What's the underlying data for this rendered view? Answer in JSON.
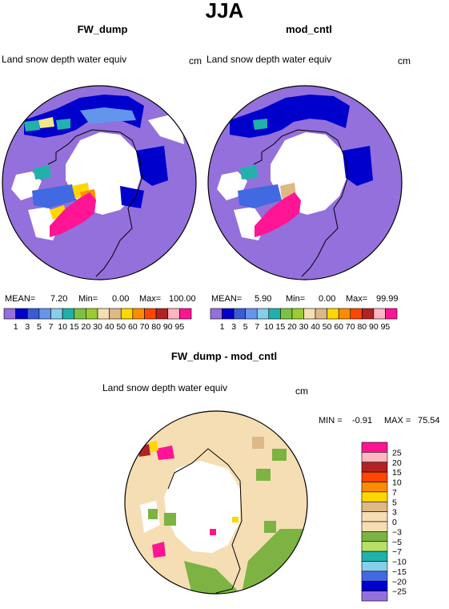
{
  "figure": {
    "title": "JJA"
  },
  "panels": [
    {
      "id": "fw_dump",
      "title": "FW_dump",
      "field_label": "Land snow depth water equiv",
      "units": "cm",
      "stats": {
        "mean_label": "MEAN=",
        "mean": "7.20",
        "min_label": "Min=",
        "min": "0.00",
        "max_label": "Max=",
        "max": "100.00"
      }
    },
    {
      "id": "mod_cntl",
      "title": "mod_cntl",
      "field_label": "Land snow depth water equiv",
      "units": "cm",
      "stats": {
        "mean_label": "MEAN=",
        "mean": "5.90",
        "min_label": "Min=",
        "min": "0.00",
        "max_label": "Max=",
        "max": "99.99"
      }
    },
    {
      "id": "diff",
      "title": "FW_dump - mod_cntl",
      "field_label": "Land snow depth water equiv",
      "units": "cm",
      "stats": {
        "min_label": "MIN =",
        "min": "-0.91",
        "max_label": "MAX =",
        "max": "75.54"
      }
    }
  ],
  "chart_data": [
    {
      "type": "heatmap",
      "projection": "polar stereographic (circular)",
      "title": "FW_dump",
      "variable": "Land snow depth water equiv",
      "units": "cm",
      "mean": 7.2,
      "min": 0.0,
      "max": 100.0,
      "colorbar": {
        "orientation": "horizontal",
        "levels": [
          1,
          3,
          5,
          7,
          10,
          15,
          20,
          30,
          40,
          50,
          60,
          70,
          80,
          90,
          95
        ],
        "tick_labels": [
          "1",
          "3",
          "5",
          "7",
          "10",
          "15",
          "20",
          "30",
          "40",
          "50",
          "60",
          "70",
          "80",
          "90",
          "95"
        ],
        "colors": [
          "#9370db",
          "#0000cd",
          "#3b5bd6",
          "#6495ed",
          "#87ceeb",
          "#20b2aa",
          "#7cc242",
          "#9acd32",
          "#f5deb3",
          "#deb887",
          "#ffd700",
          "#ff8c00",
          "#ff4500",
          "#b22222",
          "#ffb6c1",
          "#ff1493"
        ]
      }
    },
    {
      "type": "heatmap",
      "projection": "polar stereographic (circular)",
      "title": "mod_cntl",
      "variable": "Land snow depth water equiv",
      "units": "cm",
      "mean": 5.9,
      "min": 0.0,
      "max": 99.99,
      "colorbar": {
        "orientation": "horizontal",
        "levels": [
          1,
          3,
          5,
          7,
          10,
          15,
          20,
          30,
          40,
          50,
          60,
          70,
          80,
          90,
          95
        ],
        "tick_labels": [
          "1",
          "3",
          "5",
          "7",
          "10",
          "15",
          "20",
          "30",
          "40",
          "50",
          "60",
          "70",
          "80",
          "90",
          "95"
        ],
        "colors": [
          "#9370db",
          "#0000cd",
          "#3b5bd6",
          "#6495ed",
          "#87ceeb",
          "#20b2aa",
          "#7cc242",
          "#9acd32",
          "#f5deb3",
          "#deb887",
          "#ffd700",
          "#ff8c00",
          "#ff4500",
          "#b22222",
          "#ffb6c1",
          "#ff1493"
        ]
      }
    },
    {
      "type": "heatmap",
      "projection": "polar stereographic (circular)",
      "title": "FW_dump - mod_cntl",
      "variable": "Land snow depth water equiv",
      "units": "cm",
      "min": -0.91,
      "max": 75.54,
      "colorbar": {
        "orientation": "vertical",
        "levels": [
          25,
          20,
          15,
          10,
          7,
          5,
          3,
          0,
          -3,
          -5,
          -7,
          -10,
          -15,
          -20,
          -25
        ],
        "tick_labels": [
          "25",
          "20",
          "15",
          "10",
          "7",
          "5",
          "3",
          "0",
          "−3",
          "−5",
          "−7",
          "−10",
          "−15",
          "−20",
          "−25"
        ],
        "colors": [
          "#ff1493",
          "#ffb6c1",
          "#b22222",
          "#ff4500",
          "#ff8c00",
          "#ffd700",
          "#deb887",
          "#f5deb3",
          "#f5deb3",
          "#7cb342",
          "#b8e068",
          "#20b2aa",
          "#87ceeb",
          "#4169e1",
          "#0000cd",
          "#9370db"
        ]
      }
    }
  ]
}
